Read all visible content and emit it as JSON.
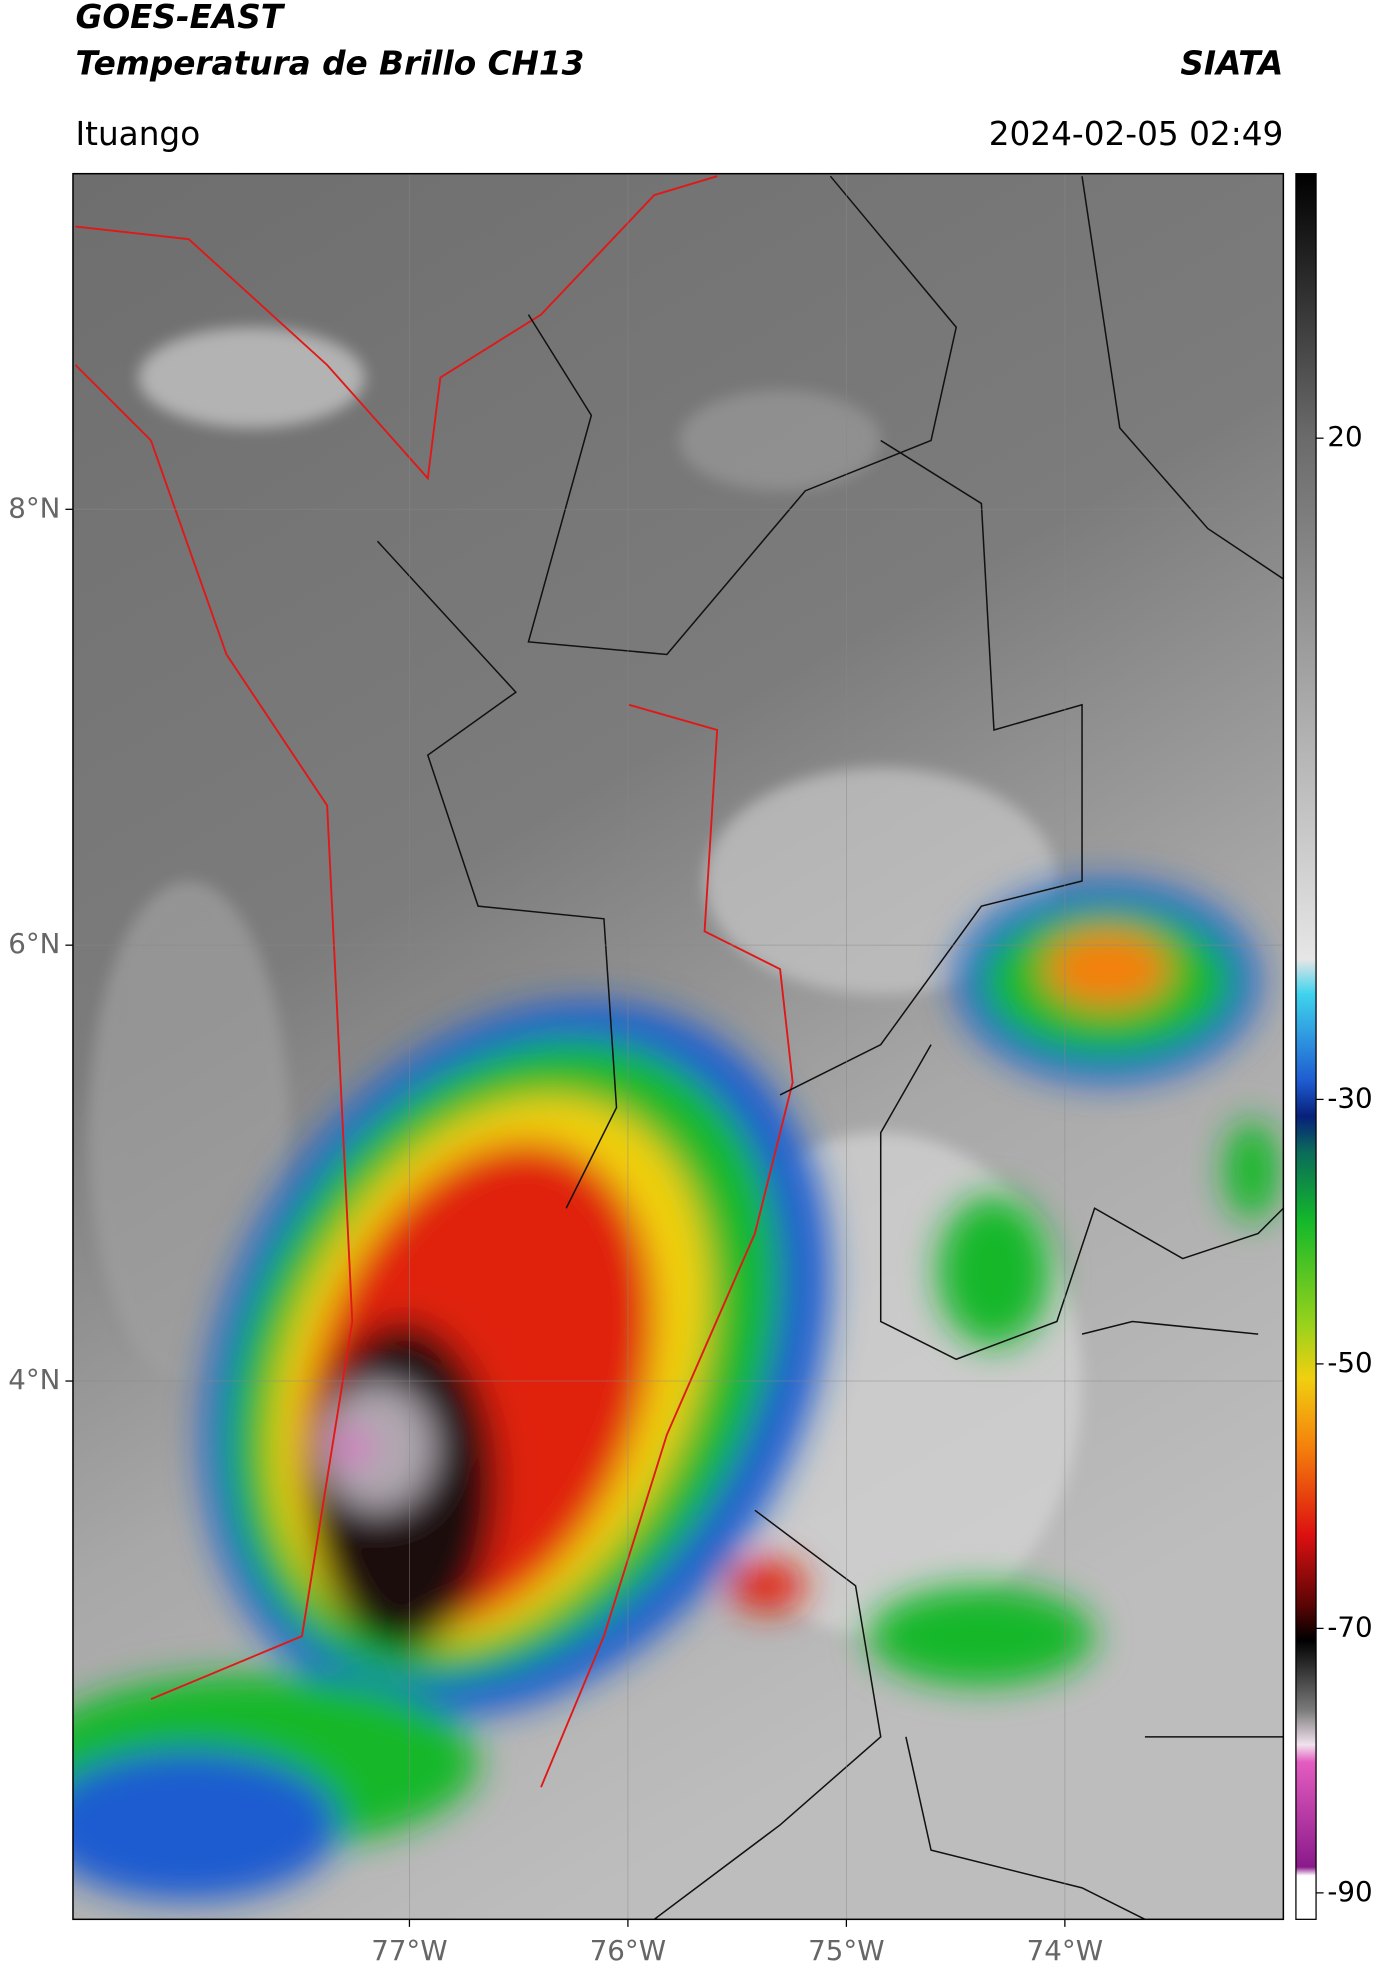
{
  "header": {
    "title": "GOES-EAST",
    "product": "Temperatura de Brillo CH13",
    "source": "SIATA",
    "region": "Ituango",
    "datetime": "2024-02-05 02:49"
  },
  "map": {
    "xlim": [
      -78.54,
      -73.0
    ],
    "ylim": [
      1.53,
      9.54
    ],
    "xticks": [
      {
        "value": -77,
        "label": "77°W"
      },
      {
        "value": -76,
        "label": "76°W"
      },
      {
        "value": -75,
        "label": "75°W"
      },
      {
        "value": -74,
        "label": "74°W"
      }
    ],
    "yticks": [
      {
        "value": 8,
        "label": "8°N"
      },
      {
        "value": 6,
        "label": "6°N"
      },
      {
        "value": 4,
        "label": "4°N"
      }
    ],
    "grid": true
  },
  "colorbar": {
    "lim": [
      -92,
      40
    ],
    "ticks": [
      20,
      -30,
      -50,
      -70,
      -90
    ]
  }
}
